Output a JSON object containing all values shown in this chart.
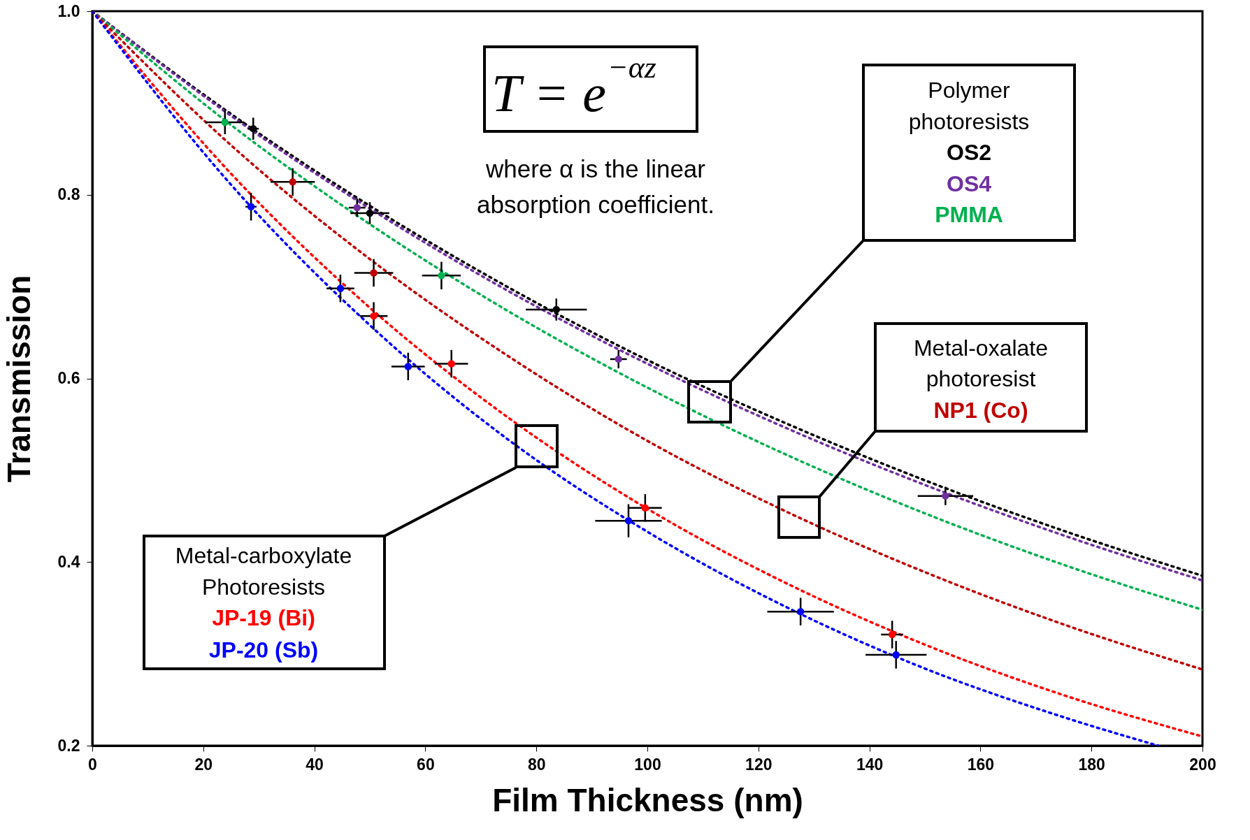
{
  "chart_data": {
    "type": "scatter",
    "xlabel": "Film Thickness (nm)",
    "ylabel": "Transmission",
    "xlim": [
      0,
      200
    ],
    "ylim": [
      0.2,
      1.0
    ],
    "xticks": [
      0,
      20,
      40,
      60,
      80,
      100,
      120,
      140,
      160,
      180,
      200
    ],
    "yticks": [
      0.2,
      0.4,
      0.6,
      0.8,
      {
        "value": 1.0,
        "label": "1.0"
      }
    ],
    "grid": false,
    "legend": false,
    "marker": "circle",
    "annotations": [
      "T = e$^{−αz}$",
      "where α is the linear absorption coefficient.",
      "Polymer photoresists",
      "Metal-oxalate photoresist",
      "Metal-carboxylate Photoresists"
    ],
    "series": [
      {
        "name": "OS2",
        "type": "scatter",
        "color": "#000000",
        "x": [
          29.0,
          50.0,
          83.6
        ],
        "values": [
          0.872,
          0.78,
          0.675
        ],
        "xerrors": [
          1,
          3.5,
          5.5
        ],
        "errors": [
          0.012,
          0.012,
          0.012
        ]
      },
      {
        "name": "OS4",
        "type": "scatter",
        "color": "#7030a0",
        "x": [
          47.7,
          94.8,
          153.7
        ],
        "values": [
          0.786,
          0.621,
          0.472
        ],
        "xerrors": [
          1.5,
          1.5,
          5
        ],
        "errors": [
          0.01,
          0.01,
          0.01
        ]
      },
      {
        "name": "PMMA",
        "type": "scatter",
        "color": "#00b050",
        "x": [
          23.9,
          62.9
        ],
        "values": [
          0.879,
          0.712
        ],
        "xerrors": [
          3.5,
          3.5
        ],
        "errors": [
          0.013,
          0.015
        ]
      },
      {
        "name": "NP1 (Co)",
        "type": "scatter",
        "color": "#c00000",
        "x": [
          36.1,
          50.7
        ],
        "values": [
          0.814,
          0.715
        ],
        "xerrors": [
          4,
          3.5
        ],
        "errors": [
          0.015,
          0.015
        ]
      },
      {
        "name": "JP-19 (Bi)",
        "type": "scatter",
        "color": "#ff0000",
        "x": [
          50.7,
          64.7,
          99.6,
          144.1
        ],
        "values": [
          0.668,
          0.616,
          0.459,
          0.321
        ],
        "xerrors": [
          2.5,
          3,
          3,
          2
        ],
        "errors": [
          0.015,
          0.015,
          0.015,
          0.015
        ]
      },
      {
        "name": "JP-20 (Sb)",
        "type": "scatter",
        "color": "#0000ff",
        "x": [
          28.6,
          44.7,
          56.9,
          96.6,
          127.6,
          144.8
        ],
        "values": [
          0.787,
          0.698,
          0.613,
          0.445,
          0.346,
          0.299
        ],
        "xerrors": [
          1,
          2.5,
          3,
          6,
          6,
          5.5
        ],
        "errors": [
          0.015,
          0.015,
          0.015,
          0.018,
          0.015,
          0.015
        ]
      },
      {
        "type": "line",
        "line_style": "dotted",
        "marker": "none",
        "color": "#000000",
        "x": [
          0,
          25,
          50,
          75,
          100,
          125,
          150,
          175,
          200
        ],
        "values": [
          1,
          0.888,
          0.788,
          0.699,
          0.62,
          0.551,
          0.489,
          0.434,
          0.385
        ]
      },
      {
        "type": "line",
        "line_style": "dotted",
        "marker": "none",
        "color": "#7030a0",
        "x": [
          0,
          25,
          50,
          75,
          100,
          125,
          150,
          175,
          200
        ],
        "values": [
          1,
          0.886,
          0.785,
          0.695,
          0.616,
          0.546,
          0.484,
          0.429,
          0.38
        ]
      },
      {
        "type": "line",
        "line_style": "dotted",
        "marker": "none",
        "color": "#00b050",
        "x": [
          0,
          25,
          50,
          75,
          100,
          125,
          150,
          175,
          200
        ],
        "values": [
          1,
          0.876,
          0.768,
          0.673,
          0.59,
          0.517,
          0.453,
          0.397,
          0.348
        ]
      },
      {
        "type": "line",
        "line_style": "dotted",
        "marker": "none",
        "color": "#c00000",
        "x": [
          0,
          25,
          50,
          75,
          100,
          125,
          150,
          175,
          200
        ],
        "values": [
          1,
          0.854,
          0.73,
          0.624,
          0.532,
          0.455,
          0.389,
          0.332,
          0.283
        ]
      },
      {
        "type": "line",
        "line_style": "dotted",
        "marker": "none",
        "color": "#ff0000",
        "x": [
          0,
          25,
          50,
          75,
          100,
          125,
          150,
          175,
          200
        ],
        "values": [
          1,
          0.823,
          0.677,
          0.557,
          0.458,
          0.377,
          0.31,
          0.255,
          0.21
        ]
      },
      {
        "type": "line",
        "line_style": "dotted",
        "marker": "none",
        "color": "#0000ff",
        "x": [
          0,
          25,
          50,
          75,
          100,
          125,
          150,
          175,
          192
        ],
        "values": [
          1,
          0.811,
          0.658,
          0.533,
          0.433,
          0.351,
          0.284,
          0.231,
          0.2
        ]
      }
    ]
  }
}
